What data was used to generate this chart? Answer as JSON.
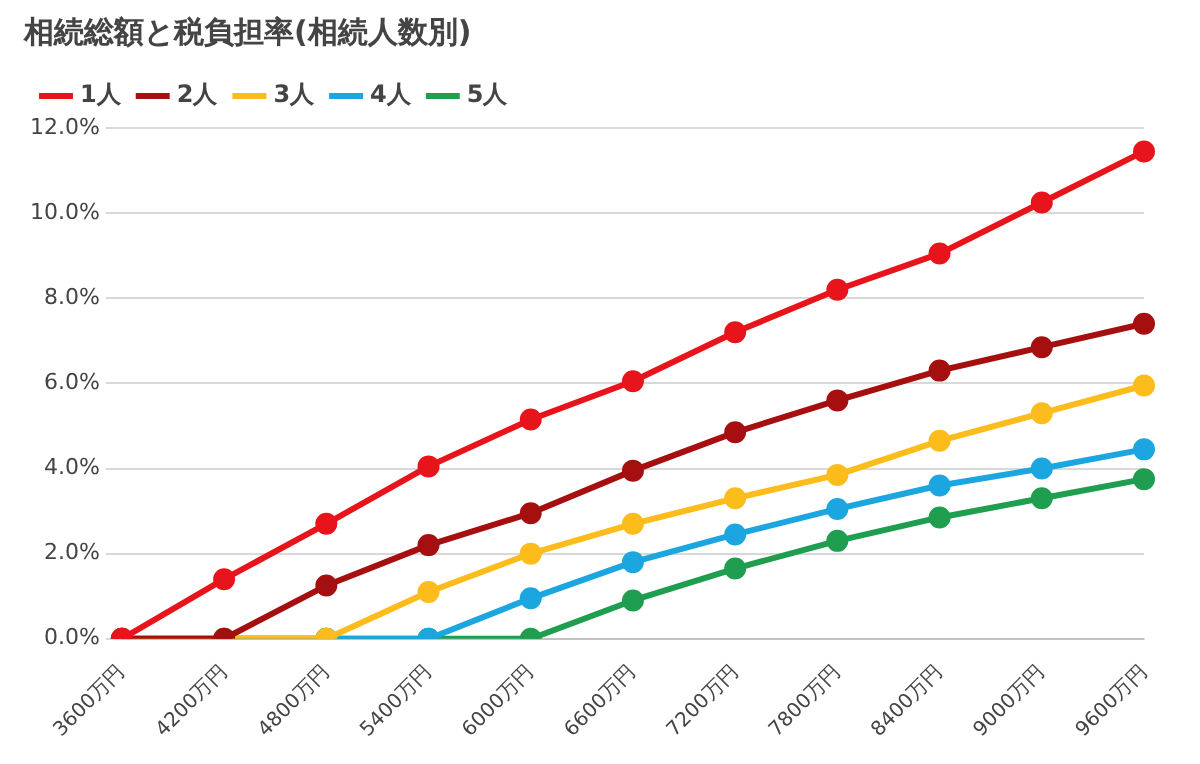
{
  "chart_data": {
    "type": "line",
    "title": "相続総額と税負担率(相続人数別)",
    "categories": [
      "3600万円",
      "4200万円",
      "4800万円",
      "5400万円",
      "6000万円",
      "6600万円",
      "7200万円",
      "7800万円",
      "8400万円",
      "9000万円",
      "9600万円"
    ],
    "series": [
      {
        "name": "1人",
        "color": "#e8141c",
        "values": [
          0,
          1.4,
          2.7,
          4.05,
          5.15,
          6.05,
          7.2,
          8.2,
          9.05,
          10.25,
          11.45
        ]
      },
      {
        "name": "2人",
        "color": "#a50f0f",
        "values": [
          0,
          0,
          1.25,
          2.2,
          2.95,
          3.95,
          4.85,
          5.6,
          6.3,
          6.85,
          7.4
        ]
      },
      {
        "name": "3人",
        "color": "#fbbc1c",
        "values": [
          0,
          0,
          0,
          1.1,
          2.0,
          2.7,
          3.3,
          3.85,
          4.65,
          5.3,
          5.95
        ]
      },
      {
        "name": "4人",
        "color": "#1ca6e0",
        "values": [
          0,
          0,
          0,
          0,
          0.95,
          1.8,
          2.45,
          3.05,
          3.6,
          4.0,
          4.45
        ]
      },
      {
        "name": "5人",
        "color": "#1e9e4e",
        "values": [
          0,
          0,
          0,
          0,
          0,
          0.9,
          1.65,
          2.3,
          2.85,
          3.3,
          3.75
        ]
      }
    ],
    "ylim": [
      0,
      12
    ],
    "yticks": [
      {
        "value": 0,
        "label": "0.0%"
      },
      {
        "value": 2,
        "label": "2.0%"
      },
      {
        "value": 4,
        "label": "4.0%"
      },
      {
        "value": 6,
        "label": "6.0%"
      },
      {
        "value": 8,
        "label": "8.0%"
      },
      {
        "value": 10,
        "label": "10.0%"
      },
      {
        "value": 12,
        "label": "12.0%"
      }
    ],
    "grid": "y",
    "legend": "top left",
    "marker": "circle",
    "line_style": "solid"
  }
}
